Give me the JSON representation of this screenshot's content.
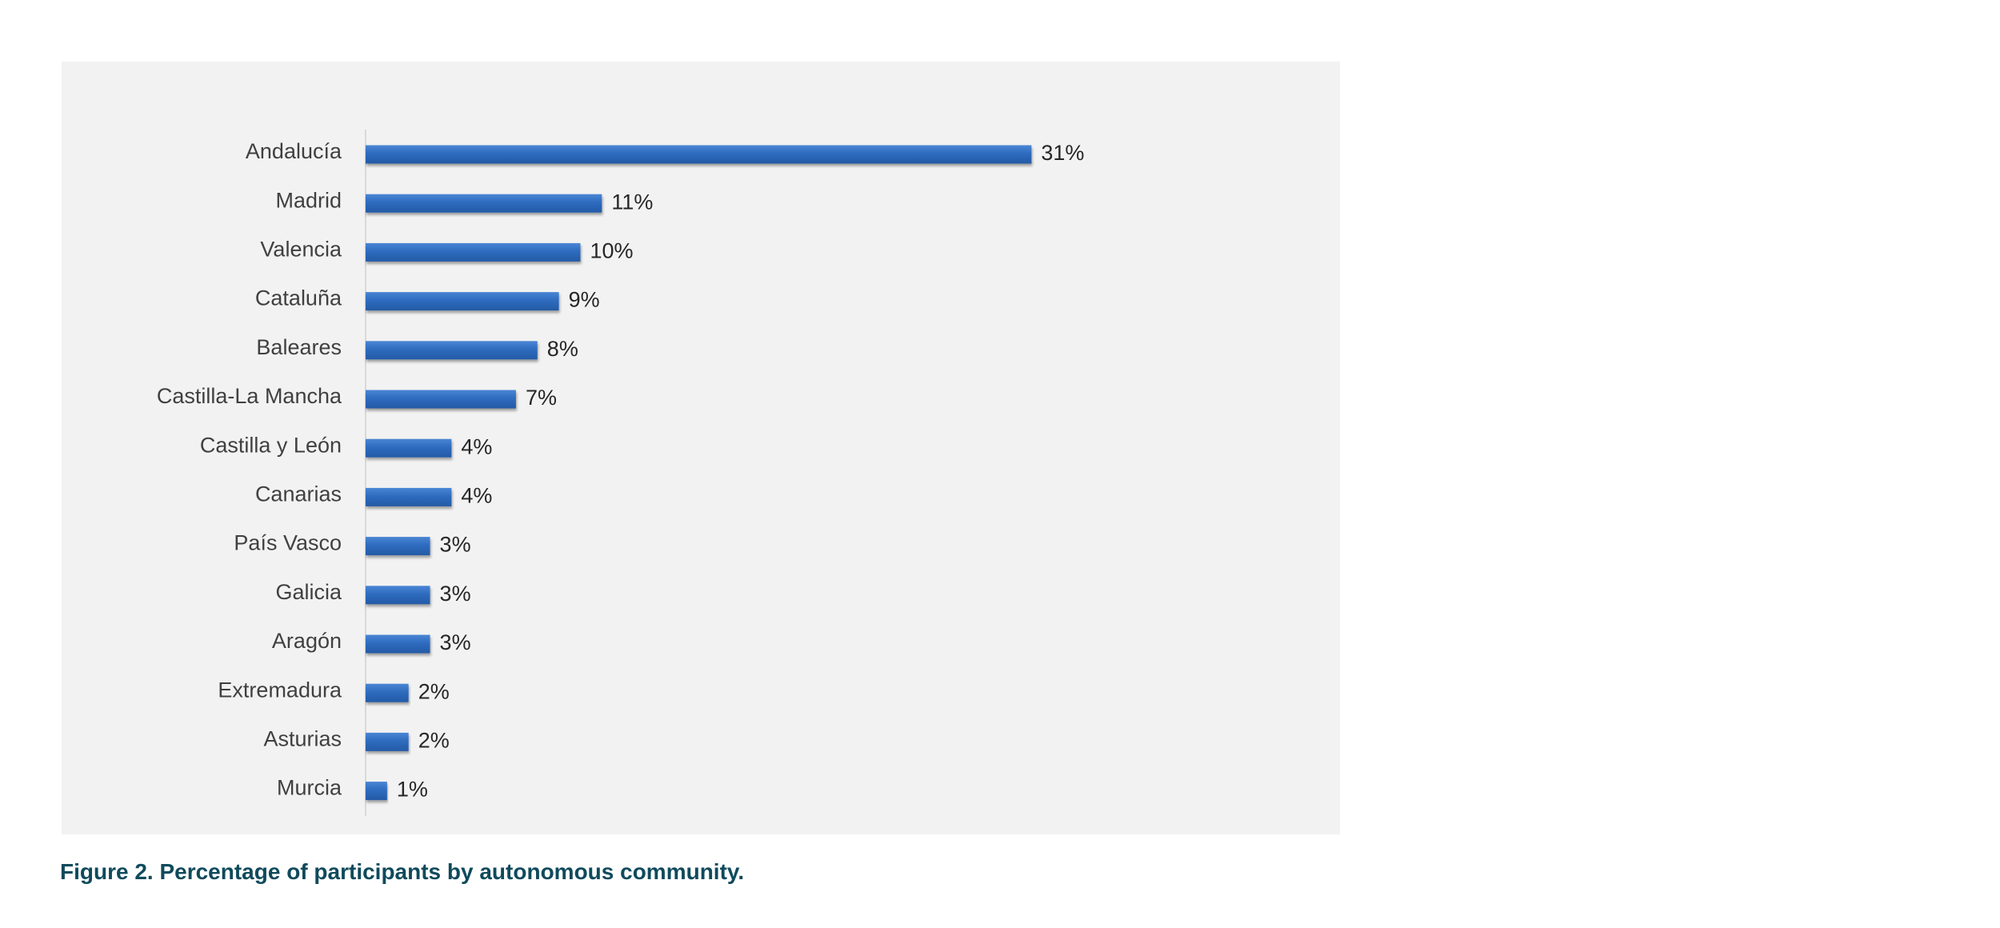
{
  "chart_data": {
    "type": "bar",
    "orientation": "horizontal",
    "categories": [
      "Andalucía",
      "Madrid",
      "Valencia",
      "Cataluña",
      "Baleares",
      "Castilla-La Mancha",
      "Castilla y León",
      "Canarias",
      "País Vasco",
      "Galicia",
      "Aragón",
      "Extremadura",
      "Asturias",
      "Murcia"
    ],
    "values": [
      31,
      11,
      10,
      9,
      8,
      7,
      4,
      4,
      3,
      3,
      3,
      2,
      2,
      1
    ],
    "data_labels": [
      "31%",
      "11%",
      "10%",
      "9%",
      "8%",
      "7%",
      "4%",
      "4%",
      "3%",
      "3%",
      "3%",
      "2%",
      "2%",
      "1%"
    ],
    "unit": "%",
    "xlim": [
      0,
      37
    ],
    "grid": false,
    "legend": "none",
    "colors": {
      "bar": "#2e6bbf",
      "bar_highlight": "#4a86d4",
      "panel_background": "#f2f2f2",
      "axis_line": "#d9d9d9"
    }
  },
  "caption": "Figure 2. Percentage of participants by autonomous community."
}
